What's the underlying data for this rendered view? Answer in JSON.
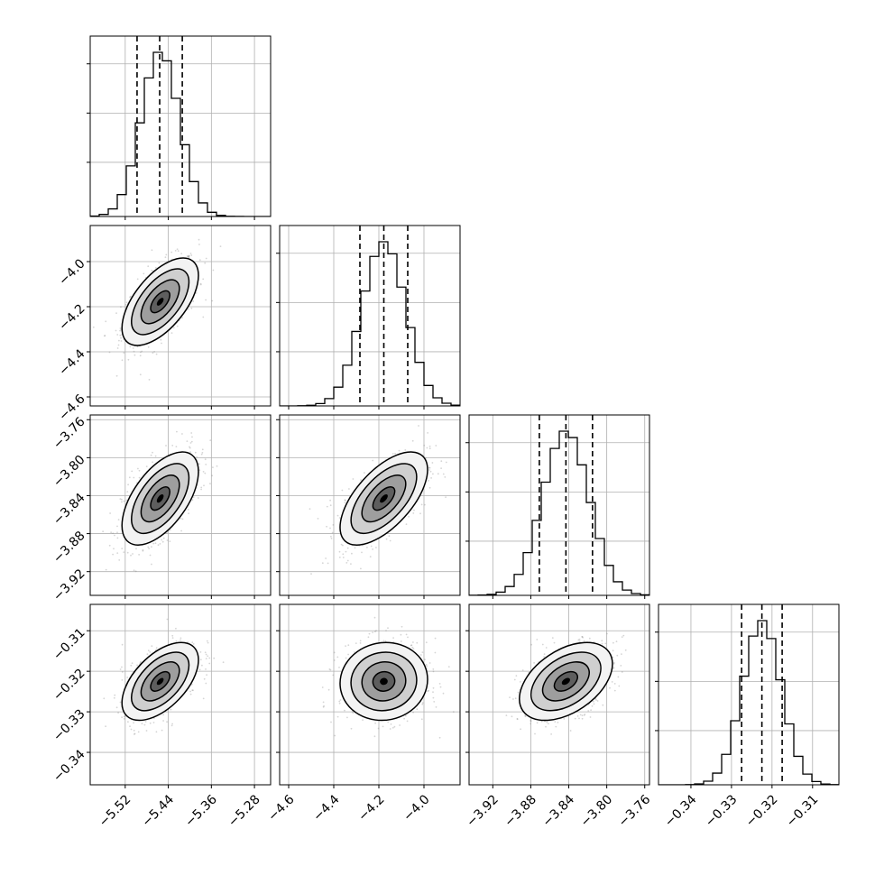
{
  "chart_data": {
    "type": "corner",
    "params": [
      {
        "mean": -5.455,
        "std": 0.0355,
        "range": [
          -5.585,
          -5.25
        ],
        "ticks": [
          "−5.52",
          "−5.44",
          "−5.36",
          "−5.28"
        ],
        "tick_values": [
          -5.52,
          -5.44,
          -5.36,
          -5.28
        ],
        "quantiles": [
          -5.498,
          -5.456,
          -5.414
        ]
      },
      {
        "mean": -4.178,
        "std": 0.097,
        "range": [
          -4.64,
          -3.84
        ],
        "ticks": [
          "−4.6",
          "−4.4",
          "−4.2",
          "−4.0"
        ],
        "tick_values": [
          -4.6,
          -4.4,
          -4.2,
          -4.0
        ],
        "quantiles": [
          -4.284,
          -4.178,
          -4.072
        ]
      },
      {
        "mean": -3.843,
        "std": 0.0245,
        "range": [
          -3.945,
          -3.755
        ],
        "ticks": [
          "−3.92",
          "−3.88",
          "−3.84",
          "−3.80",
          "−3.76"
        ],
        "tick_values": [
          -3.92,
          -3.88,
          -3.84,
          -3.8,
          -3.76
        ],
        "quantiles": [
          -3.871,
          -3.843,
          -3.815
        ]
      },
      {
        "mean": -0.3225,
        "std": 0.0048,
        "range": [
          -0.348,
          -0.3035
        ],
        "ticks": [
          "−0.34",
          "−0.33",
          "−0.32",
          "−0.31"
        ],
        "tick_values": [
          -0.34,
          -0.33,
          -0.32,
          -0.31
        ],
        "quantiles": [
          -0.3275,
          -0.3225,
          -0.3175
        ]
      }
    ],
    "correlations": {
      "1-0": 0.6,
      "2-0": 0.58,
      "2-1": 0.62,
      "3-0": 0.55,
      "3-1": 0.05,
      "3-2": 0.45
    },
    "histogram_bins": 20,
    "contour_levels_sigma": [
      0.5,
      1.0,
      1.5,
      2.0
    ],
    "grid": true,
    "colors": {
      "frame": "#000000",
      "grid": "#b0b0b0",
      "points": "#888888",
      "quantile_line": "#000000"
    }
  }
}
